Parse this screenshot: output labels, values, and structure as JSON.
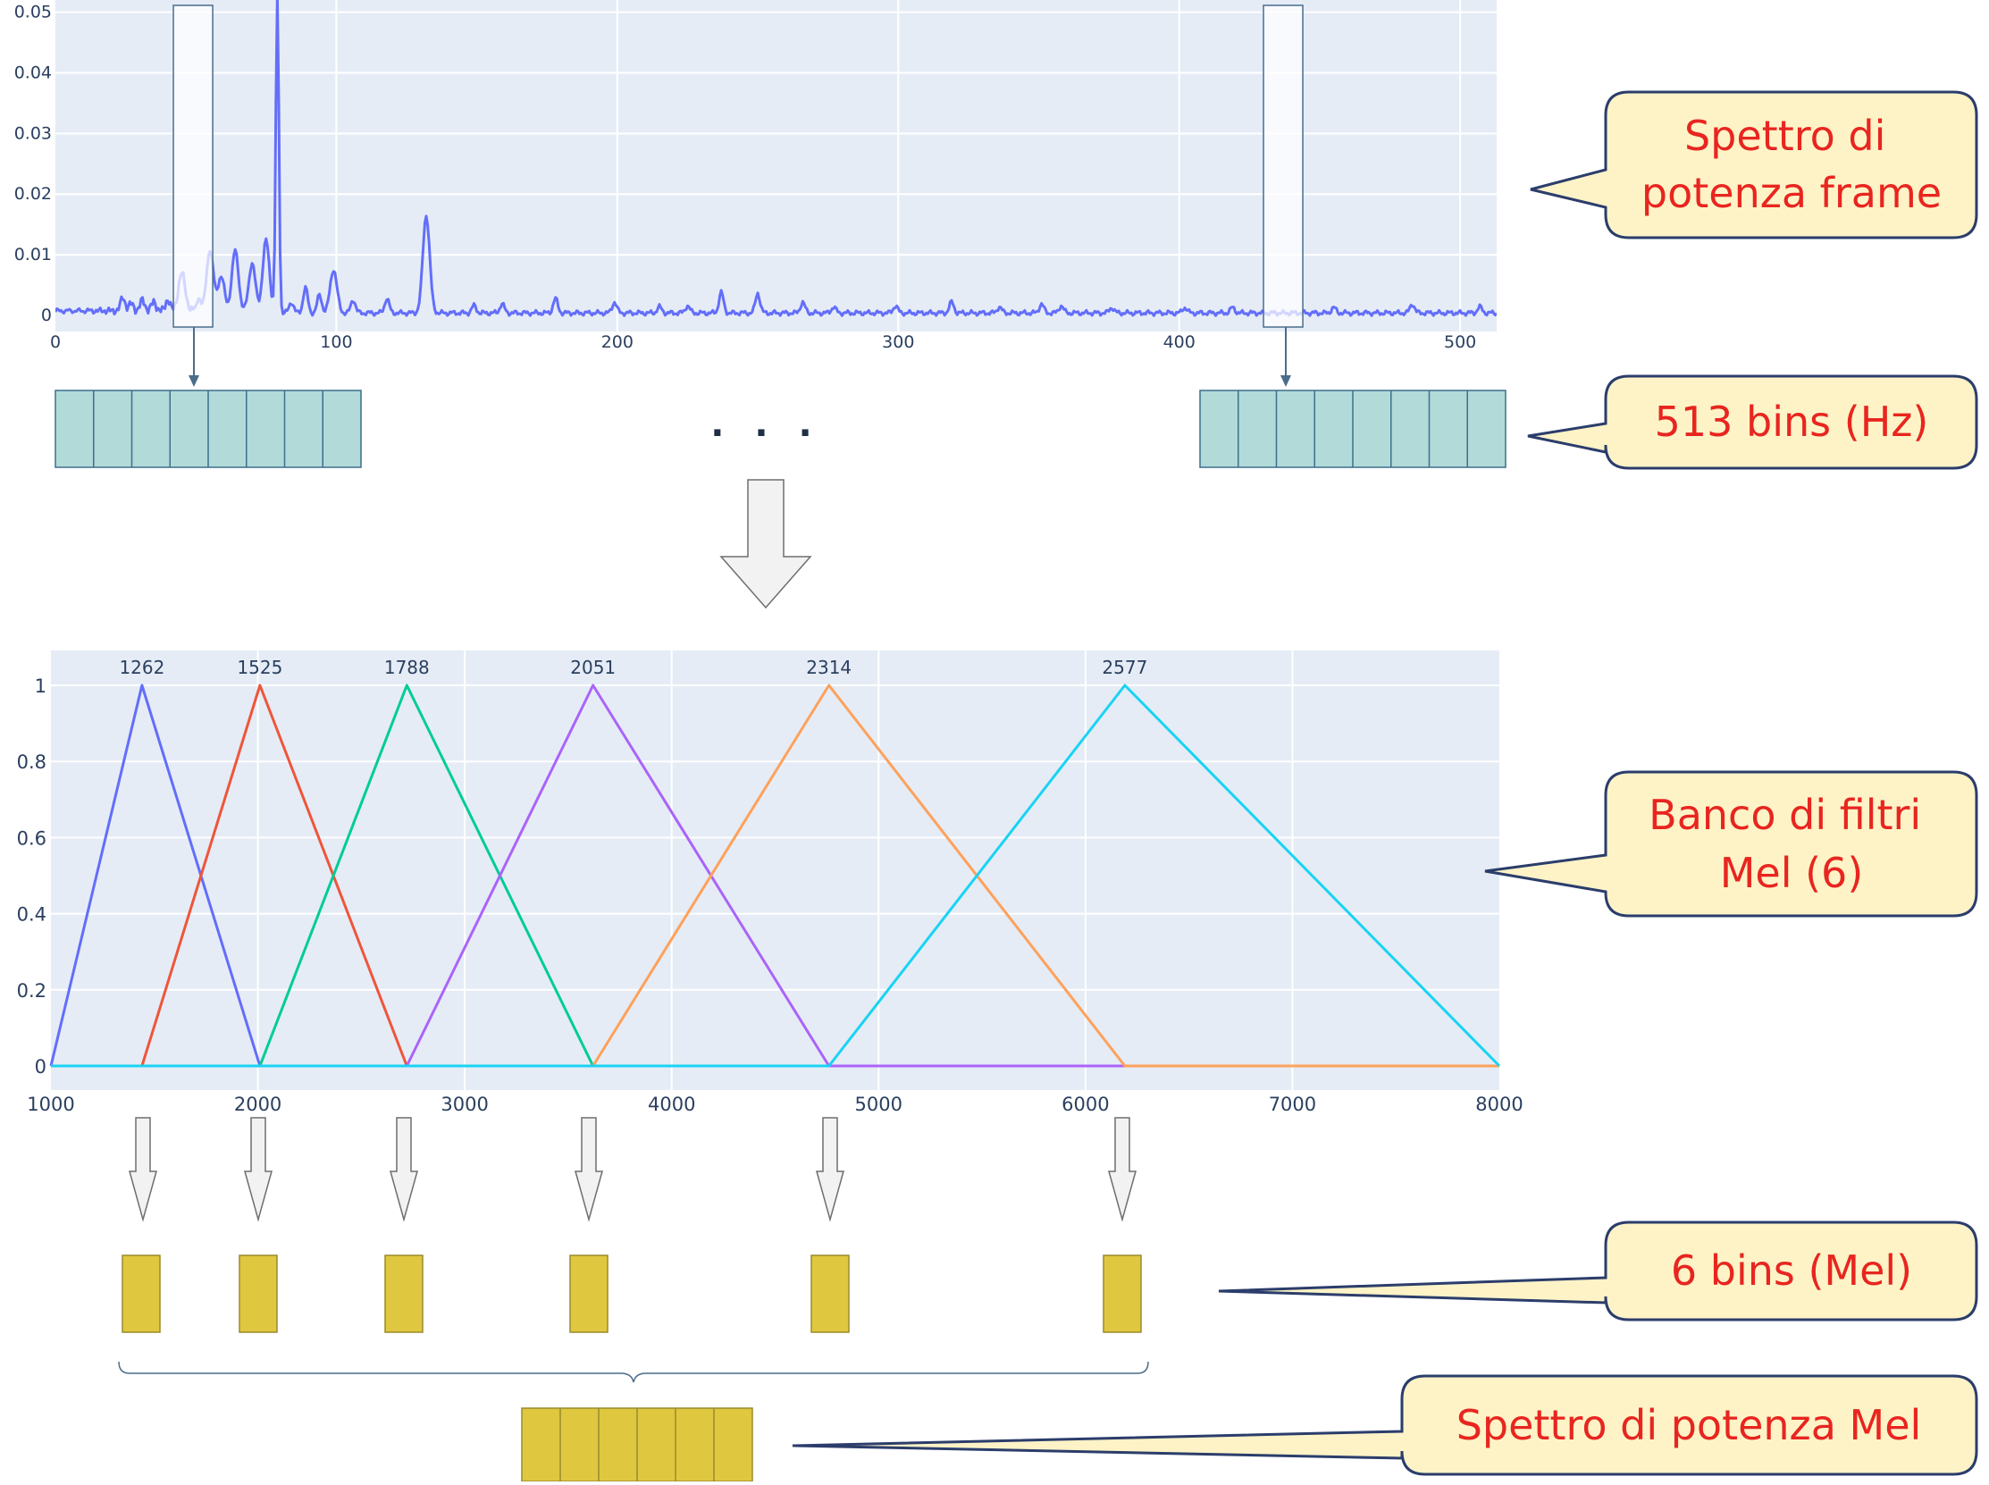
{
  "colors": {
    "plot_bg": "#e5ecf6",
    "grid": "#ffffff",
    "spectrum_line": "#636efa",
    "bin_fill": "#b2dad9",
    "bin_stroke": "#3d6f8a",
    "mel_fill": "#dfc840",
    "mel_stroke": "#9a8a2a",
    "callout_fill": "#fef3c7",
    "callout_stroke": "#2b3d6b",
    "callout_text": "#e8251f",
    "filter_colors": [
      "#636efa",
      "#ef553b",
      "#00cc96",
      "#ab63fa",
      "#ffa15a",
      "#19d3f3"
    ]
  },
  "callouts": {
    "spectrum": [
      "Spettro di",
      "potenza frame"
    ],
    "bins_hz": [
      "513 bins (Hz)"
    ],
    "filterbank": [
      "Banco di filtri",
      "Mel (6)"
    ],
    "bins_mel": [
      "6 bins (Mel)"
    ],
    "mel_spectrum": [
      "Spettro di potenza Mel"
    ]
  },
  "ellipsis": ". . .",
  "chart_data": [
    {
      "type": "line",
      "xlim": [
        0,
        513
      ],
      "ylim": [
        0,
        0.052
      ],
      "x_ticks": [
        "0",
        "100",
        "200",
        "300",
        "400",
        "500"
      ],
      "y_ticks": [
        "0",
        "0.01",
        "0.02",
        "0.03",
        "0.04",
        "0.05"
      ],
      "peaks": [
        {
          "x": 24,
          "y": 0.0022
        },
        {
          "x": 27,
          "y": 0.0012
        },
        {
          "x": 31,
          "y": 0.0018
        },
        {
          "x": 35,
          "y": 0.0015
        },
        {
          "x": 40,
          "y": 0.0018
        },
        {
          "x": 45,
          "y": 0.0062
        },
        {
          "x": 51,
          "y": 0.0025
        },
        {
          "x": 55,
          "y": 0.0105
        },
        {
          "x": 59,
          "y": 0.006
        },
        {
          "x": 64,
          "y": 0.0103
        },
        {
          "x": 70,
          "y": 0.0082
        },
        {
          "x": 75,
          "y": 0.012
        },
        {
          "x": 79,
          "y": 0.052
        },
        {
          "x": 84,
          "y": 0.0018
        },
        {
          "x": 89,
          "y": 0.0042
        },
        {
          "x": 94,
          "y": 0.003
        },
        {
          "x": 99,
          "y": 0.0072
        },
        {
          "x": 106,
          "y": 0.0022
        },
        {
          "x": 118,
          "y": 0.0024
        },
        {
          "x": 132,
          "y": 0.0162
        },
        {
          "x": 149,
          "y": 0.0012
        },
        {
          "x": 159,
          "y": 0.0015
        },
        {
          "x": 178,
          "y": 0.0024
        },
        {
          "x": 199,
          "y": 0.0018
        },
        {
          "x": 215,
          "y": 0.001
        },
        {
          "x": 225,
          "y": 0.0012
        },
        {
          "x": 237,
          "y": 0.0034
        },
        {
          "x": 250,
          "y": 0.0033
        },
        {
          "x": 266,
          "y": 0.0018
        },
        {
          "x": 277,
          "y": 0.001
        },
        {
          "x": 299,
          "y": 0.0012
        },
        {
          "x": 319,
          "y": 0.0018
        },
        {
          "x": 336,
          "y": 0.001
        },
        {
          "x": 351,
          "y": 0.0015
        },
        {
          "x": 358,
          "y": 0.0012
        },
        {
          "x": 376,
          "y": 0.0009
        },
        {
          "x": 402,
          "y": 0.0009
        },
        {
          "x": 419,
          "y": 0.0009
        },
        {
          "x": 455,
          "y": 0.0009
        },
        {
          "x": 483,
          "y": 0.0015
        },
        {
          "x": 507,
          "y": 0.001
        }
      ],
      "highlights": [
        {
          "from": 42,
          "to": 56
        },
        {
          "from": 430,
          "to": 444
        }
      ]
    },
    {
      "type": "line",
      "xlim": [
        1000,
        8000
      ],
      "ylim": [
        0,
        1
      ],
      "x_ticks": [
        "1000",
        "2000",
        "3000",
        "4000",
        "5000",
        "6000",
        "7000",
        "8000"
      ],
      "y_ticks": [
        "0",
        "0.2",
        "0.4",
        "0.6",
        "0.8",
        "1"
      ],
      "filters": [
        {
          "label": "1262",
          "start": 1000,
          "peak": 1440,
          "end": 2010
        },
        {
          "label": "1525",
          "start": 1440,
          "peak": 2010,
          "end": 2720
        },
        {
          "label": "1788",
          "start": 2010,
          "peak": 2720,
          "end": 3620
        },
        {
          "label": "2051",
          "start": 2720,
          "peak": 3620,
          "end": 4760
        },
        {
          "label": "2314",
          "start": 3620,
          "peak": 4760,
          "end": 6190
        },
        {
          "label": "2577",
          "start": 4760,
          "peak": 6190,
          "end": 8000
        }
      ]
    }
  ]
}
